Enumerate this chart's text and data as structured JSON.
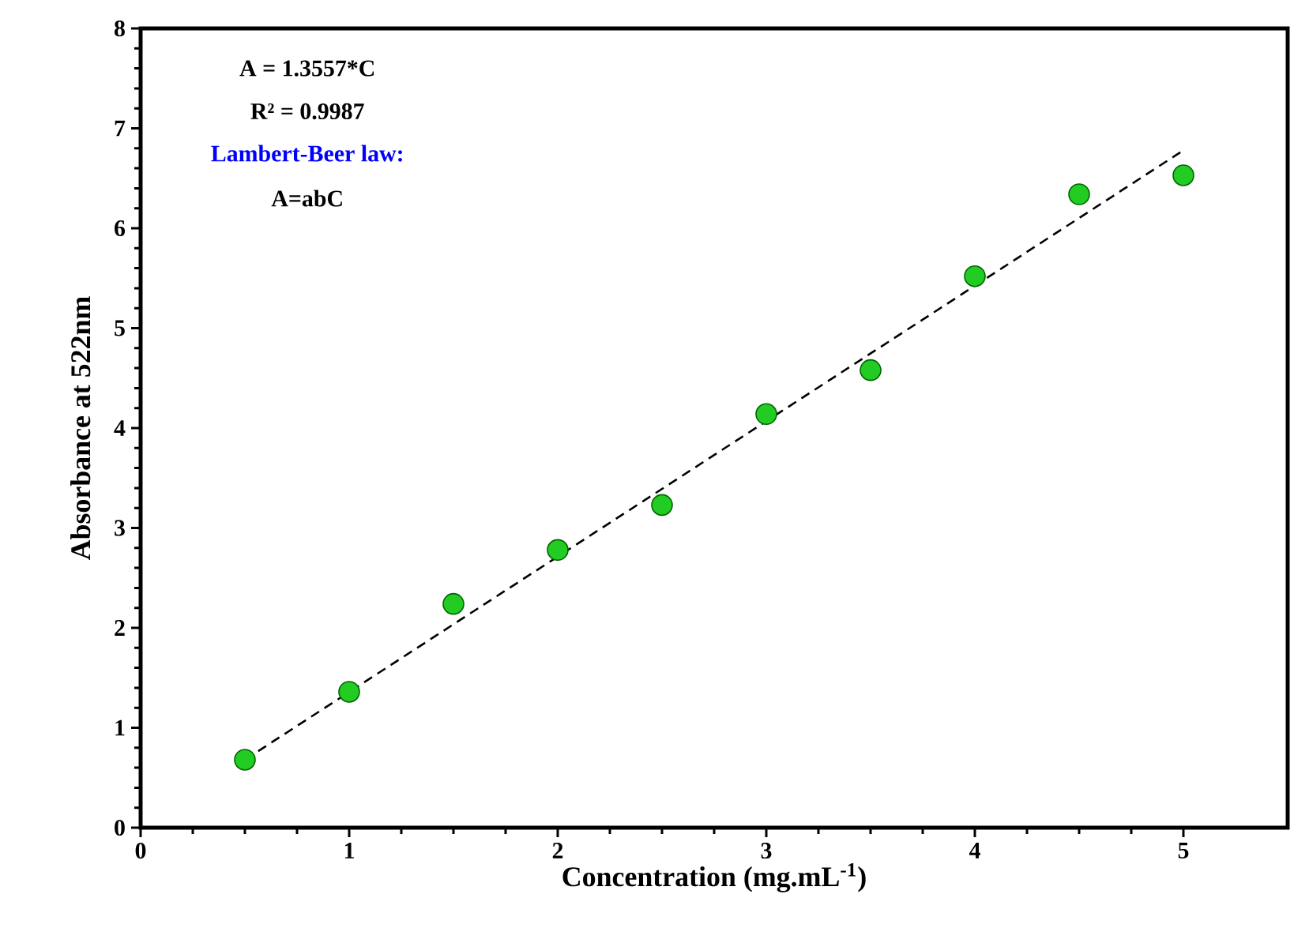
{
  "chart_data": {
    "type": "scatter",
    "xlabel": "Concentration (mg.mL$^{-1}$)",
    "ylabel": "Absorbance at 522nm",
    "x": [
      0.5,
      1,
      1.5,
      2,
      2.5,
      3,
      3.5,
      4,
      4.5,
      5
    ],
    "series": [
      {
        "color": "#22cc22",
        "marker": "circle",
        "values": [
          0.68,
          1.36,
          2.24,
          2.78,
          3.23,
          4.14,
          4.58,
          5.52,
          6.34,
          6.53
        ]
      },
      {
        "type": "line",
        "color": "#000000",
        "line_style": "dashed",
        "marker": "none",
        "x": [
          0.5,
          5
        ],
        "values": [
          0.68,
          6.78
        ]
      }
    ],
    "annotations": [
      "A = 1.3557*C",
      "R² = 0.9987",
      "Lambert-Beer law:",
      "A=abC"
    ],
    "xlim": [
      0,
      5.5
    ],
    "ylim": [
      0,
      8
    ],
    "xticks": [
      0,
      1,
      2,
      3,
      4,
      5
    ],
    "yticks": [
      0,
      1,
      2,
      3,
      4,
      5,
      6,
      7,
      8
    ],
    "grid": false
  }
}
